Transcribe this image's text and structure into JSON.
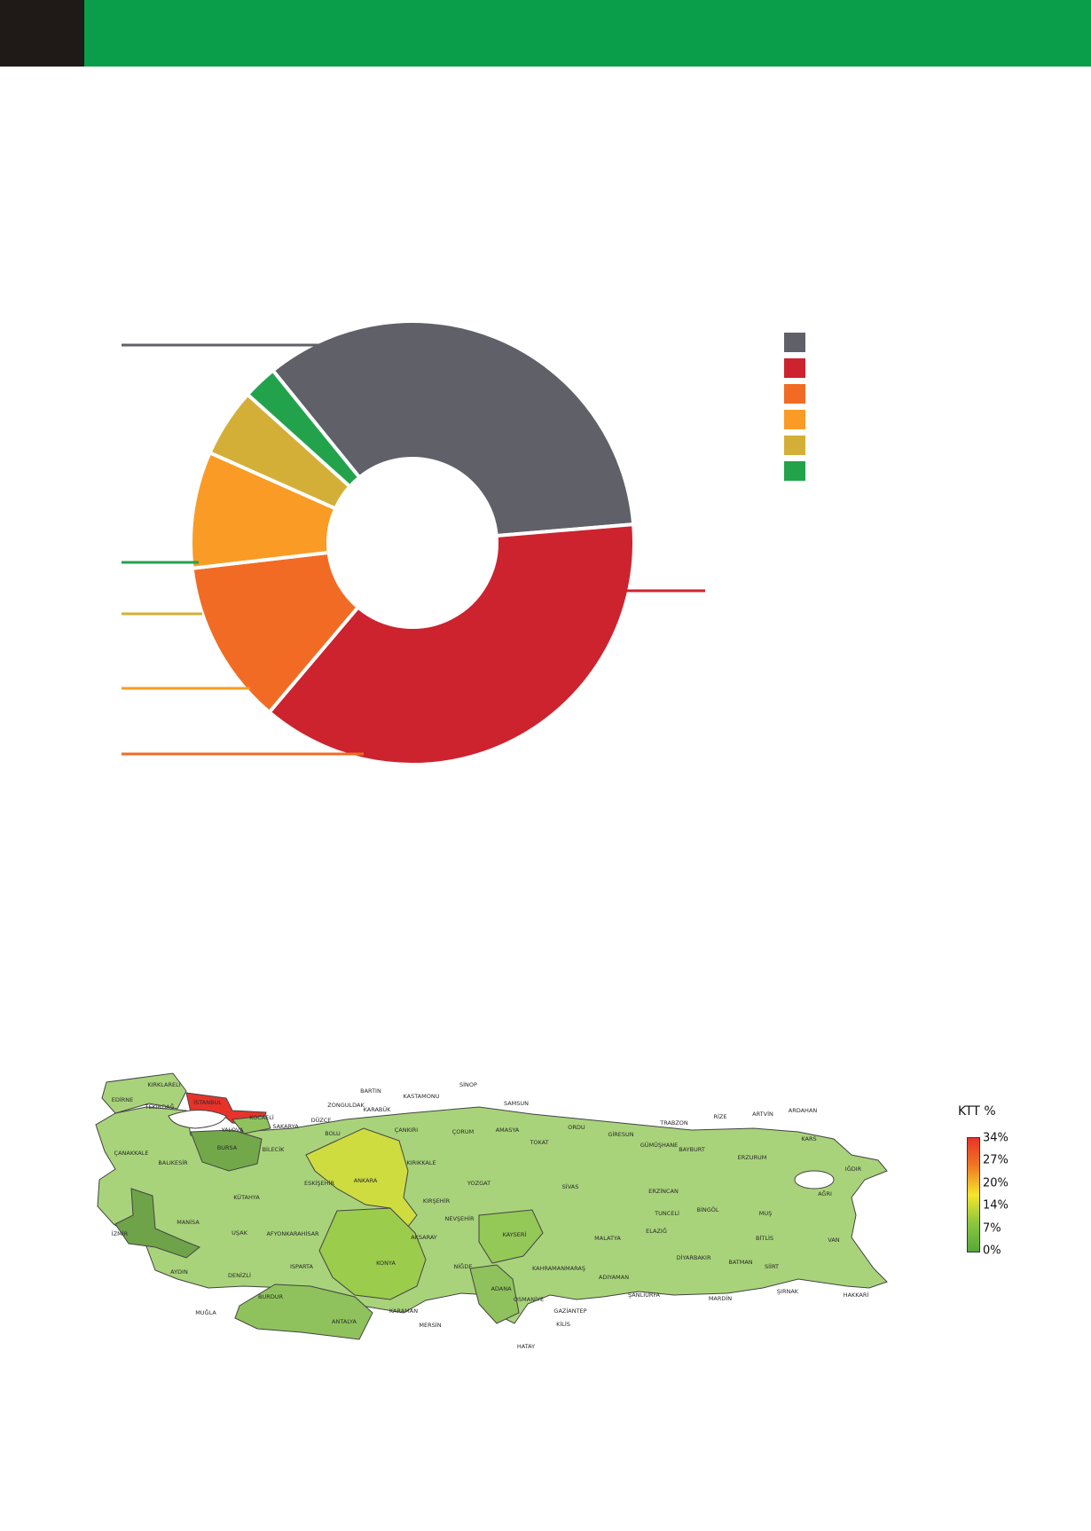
{
  "colors": {
    "top_block": "#1f1a17",
    "top_bar": "#0a9e4b"
  },
  "chart_data": [
    {
      "type": "pie",
      "title": "",
      "slices": [
        {
          "value": 34.5,
          "color": "#5f6068"
        },
        {
          "value": 37.5,
          "color": "#cc232e"
        },
        {
          "value": 12.0,
          "color": "#f26b24"
        },
        {
          "value": 8.5,
          "color": "#f99b25"
        },
        {
          "value": 5.0,
          "color": "#d4af37"
        },
        {
          "value": 2.5,
          "color": "#22a34b"
        }
      ],
      "legend_position": "top-right"
    },
    {
      "type": "heatmap",
      "title": "",
      "legend_title": "KTT  %",
      "scale_ticks": [
        "34%",
        "27%",
        "20%",
        "14%",
        "7%",
        "0%"
      ],
      "regions": [
        {
          "name": "KIRKLARELİ",
          "color": "#a8d37a"
        },
        {
          "name": "EDİRNE",
          "color": "#a8d37a"
        },
        {
          "name": "TEKİRDAĞ",
          "color": "#a8d37a"
        },
        {
          "name": "İSTANBUL",
          "color": "#e8332a"
        },
        {
          "name": "KOCAELİ",
          "color": "#8fc25c"
        },
        {
          "name": "SAKARYA",
          "color": "#a8d37a"
        },
        {
          "name": "YALOVA",
          "color": "#a8d37a"
        },
        {
          "name": "BURSA",
          "color": "#72a84a"
        },
        {
          "name": "ÇANAKKALE",
          "color": "#a8d37a"
        },
        {
          "name": "BALIKESİR",
          "color": "#a8d37a"
        },
        {
          "name": "BİLECİK",
          "color": "#a8d37a"
        },
        {
          "name": "DÜZCE",
          "color": "#a8d37a"
        },
        {
          "name": "BOLU",
          "color": "#a8d37a"
        },
        {
          "name": "ZONGULDAK",
          "color": "#a8d37a"
        },
        {
          "name": "BARTIN",
          "color": "#a8d37a"
        },
        {
          "name": "KARABÜK",
          "color": "#a8d37a"
        },
        {
          "name": "KASTAMONU",
          "color": "#a8d37a"
        },
        {
          "name": "SİNOP",
          "color": "#a8d37a"
        },
        {
          "name": "SAMSUN",
          "color": "#a8d37a"
        },
        {
          "name": "ÇANKIRI",
          "color": "#a8d37a"
        },
        {
          "name": "ÇORUM",
          "color": "#a8d37a"
        },
        {
          "name": "AMASYA",
          "color": "#a8d37a"
        },
        {
          "name": "TOKAT",
          "color": "#a8d37a"
        },
        {
          "name": "ORDU",
          "color": "#a8d37a"
        },
        {
          "name": "GİRESUN",
          "color": "#a8d37a"
        },
        {
          "name": "TRABZON",
          "color": "#a8d37a"
        },
        {
          "name": "RİZE",
          "color": "#a8d37a"
        },
        {
          "name": "ARTVİN",
          "color": "#a8d37a"
        },
        {
          "name": "ARDAHAN",
          "color": "#a8d37a"
        },
        {
          "name": "KARS",
          "color": "#a8d37a"
        },
        {
          "name": "IĞDIR",
          "color": "#a8d37a"
        },
        {
          "name": "AĞRI",
          "color": "#a8d37a"
        },
        {
          "name": "GÜMÜŞHANE",
          "color": "#a8d37a"
        },
        {
          "name": "BAYBURT",
          "color": "#a8d37a"
        },
        {
          "name": "ERZURUM",
          "color": "#a8d37a"
        },
        {
          "name": "ERZİNCAN",
          "color": "#a8d37a"
        },
        {
          "name": "TUNCELİ",
          "color": "#a8d37a"
        },
        {
          "name": "BİNGÖL",
          "color": "#a8d37a"
        },
        {
          "name": "MUŞ",
          "color": "#a8d37a"
        },
        {
          "name": "VAN",
          "color": "#a8d37a"
        },
        {
          "name": "BİTLİS",
          "color": "#a8d37a"
        },
        {
          "name": "ESKİŞEHİR",
          "color": "#a8d37a"
        },
        {
          "name": "ANKARA",
          "color": "#cfdc3f"
        },
        {
          "name": "KIRIKKALE",
          "color": "#a8d37a"
        },
        {
          "name": "KIRŞEHİR",
          "color": "#a8d37a"
        },
        {
          "name": "YOZGAT",
          "color": "#a8d37a"
        },
        {
          "name": "SİVAS",
          "color": "#a8d37a"
        },
        {
          "name": "KÜTAHYA",
          "color": "#a8d37a"
        },
        {
          "name": "MANİSA",
          "color": "#a8d37a"
        },
        {
          "name": "İZMİR",
          "color": "#6fa349"
        },
        {
          "name": "UŞAK",
          "color": "#a8d37a"
        },
        {
          "name": "AFYONKARAHİSAR",
          "color": "#a8d37a"
        },
        {
          "name": "NEVŞEHİR",
          "color": "#a8d37a"
        },
        {
          "name": "AKSARAY",
          "color": "#a8d37a"
        },
        {
          "name": "KAYSERİ",
          "color": "#94c857"
        },
        {
          "name": "MALATYA",
          "color": "#a8d37a"
        },
        {
          "name": "ELAZIĞ",
          "color": "#a8d37a"
        },
        {
          "name": "DİYARBAKIR",
          "color": "#a8d37a"
        },
        {
          "name": "BATMAN",
          "color": "#a8d37a"
        },
        {
          "name": "SİİRT",
          "color": "#a8d37a"
        },
        {
          "name": "ŞIRNAK",
          "color": "#a8d37a"
        },
        {
          "name": "HAKKARİ",
          "color": "#a8d37a"
        },
        {
          "name": "AYDIN",
          "color": "#a8d37a"
        },
        {
          "name": "DENİZLİ",
          "color": "#a8d37a"
        },
        {
          "name": "ISPARTA",
          "color": "#a8d37a"
        },
        {
          "name": "BURDUR",
          "color": "#a8d37a"
        },
        {
          "name": "KONYA",
          "color": "#9ccc4c"
        },
        {
          "name": "NİĞDE",
          "color": "#a8d37a"
        },
        {
          "name": "KAHRAMANMARAŞ",
          "color": "#a8d37a"
        },
        {
          "name": "ADIYAMAN",
          "color": "#a8d37a"
        },
        {
          "name": "ŞANLIURFA",
          "color": "#a8d37a"
        },
        {
          "name": "MARDİN",
          "color": "#a8d37a"
        },
        {
          "name": "ADANA",
          "color": "#8fc25c"
        },
        {
          "name": "OSMANİYE",
          "color": "#a8d37a"
        },
        {
          "name": "GAZİANTEP",
          "color": "#a8d37a"
        },
        {
          "name": "KİLİS",
          "color": "#a8d37a"
        },
        {
          "name": "HATAY",
          "color": "#a8d37a"
        },
        {
          "name": "MUĞLA",
          "color": "#a8d37a"
        },
        {
          "name": "ANTALYA",
          "color": "#8fc25c"
        },
        {
          "name": "KARAMAN",
          "color": "#a8d37a"
        },
        {
          "name": "MERSİN",
          "color": "#a8d37a"
        }
      ]
    }
  ]
}
